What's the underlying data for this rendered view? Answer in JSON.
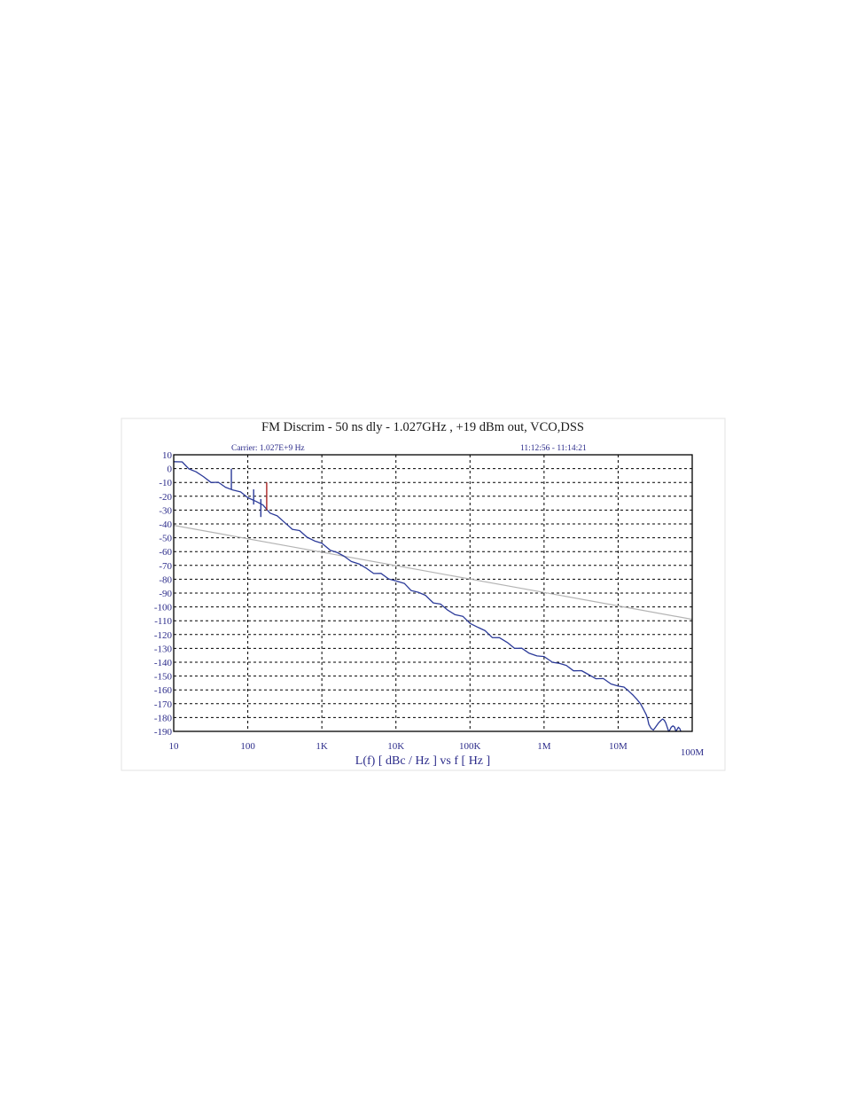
{
  "chart_data": {
    "type": "line",
    "title": "FM Discrim - 50 ns dly - 1.027GHz ,  +19 dBm out, VCO,DSS",
    "carrier_label": "Carrier: 1.027E+9 Hz",
    "time_label": "11:12:56 - 11:14:21",
    "xlabel": "L(f)  [ dBc / Hz ]  vs  f  [ Hz ]",
    "ylabel": "",
    "x_scale": "log",
    "xlim": [
      10,
      100000000
    ],
    "ylim": [
      -190,
      10
    ],
    "x_ticks": [
      {
        "value": 10,
        "label": "10"
      },
      {
        "value": 100,
        "label": "100"
      },
      {
        "value": 1000,
        "label": "1K"
      },
      {
        "value": 10000,
        "label": "10K"
      },
      {
        "value": 100000,
        "label": "100K"
      },
      {
        "value": 1000000,
        "label": "1M"
      },
      {
        "value": 10000000,
        "label": "10M"
      },
      {
        "value": 100000000,
        "label": "100M"
      }
    ],
    "y_ticks": [
      10,
      0,
      -10,
      -20,
      -30,
      -40,
      -50,
      -60,
      -70,
      -80,
      -90,
      -100,
      -110,
      -120,
      -130,
      -140,
      -150,
      -160,
      -170,
      -180,
      -190
    ],
    "grid": true,
    "colors": {
      "measured": "#2b3a99",
      "spur": "#aa2222",
      "floor": "#b4b4b4",
      "grid": "#000000",
      "axis_text": "#2b2b8a"
    },
    "series": [
      {
        "key": "measured",
        "x": [
          10,
          13,
          16,
          20,
          25,
          32,
          40,
          50,
          63,
          80,
          100,
          130,
          160,
          200,
          250,
          300,
          400,
          500,
          630,
          800,
          1000,
          1300,
          1600,
          2000,
          2500,
          3200,
          4000,
          5000,
          6300,
          8000,
          10000,
          13000,
          16000,
          20000,
          25000,
          32000,
          40000,
          50000,
          63000,
          80000,
          100000,
          130000,
          160000,
          200000,
          250000,
          320000,
          400000,
          500000,
          630000,
          800000,
          1000000,
          1300000,
          1600000,
          2000000,
          2500000,
          3200000,
          4000000,
          5000000,
          6300000,
          8000000,
          10000000,
          12000000,
          14000000,
          16000000,
          18000000,
          20000000,
          22000000,
          24000000,
          25000000,
          26000000,
          28000000,
          30000000,
          32000000,
          35000000,
          38000000,
          40000000,
          42000000,
          44000000,
          46000000,
          48000000,
          50000000,
          52000000,
          55000000,
          58000000,
          60000000,
          62000000,
          65000000,
          68000000,
          70000000
        ],
        "y": [
          5,
          4,
          1,
          -3,
          -6,
          -9,
          -11,
          -13,
          -15,
          -18,
          -20,
          -24,
          -27,
          -31,
          -35,
          -38,
          -43,
          -46,
          -49,
          -52,
          -55,
          -58,
          -61,
          -64,
          -66,
          -70,
          -72,
          -75,
          -77,
          -79,
          -81,
          -84,
          -87,
          -90,
          -92,
          -96,
          -99,
          -102,
          -105,
          -108,
          -111,
          -115,
          -118,
          -121,
          -123,
          -126,
          -129,
          -131,
          -133,
          -135,
          -137,
          -139,
          -141,
          -143,
          -145,
          -147,
          -149,
          -151,
          -153,
          -155,
          -157,
          -159,
          -161,
          -164,
          -167,
          -170,
          -174,
          -178,
          -181,
          -185,
          -188,
          -189,
          -187,
          -184,
          -182,
          -181,
          -182,
          -184,
          -187,
          -190,
          -189,
          -187,
          -186,
          -187,
          -190,
          -189,
          -187,
          -188,
          -190
        ]
      },
      {
        "key": "floor",
        "x": [
          10,
          100000000
        ],
        "y": [
          -41,
          -109
        ]
      }
    ],
    "spurs": [
      {
        "x": 60,
        "y_top": 0,
        "y_base": -15,
        "color_key": "measured"
      },
      {
        "x": 120,
        "y_top": -15,
        "y_base": -26,
        "color_key": "measured"
      },
      {
        "x": 150,
        "y_top": -22,
        "y_base": -35,
        "color_key": "measured"
      },
      {
        "x": 180,
        "y_top": -10,
        "y_base": -30,
        "color_key": "spur"
      }
    ]
  }
}
